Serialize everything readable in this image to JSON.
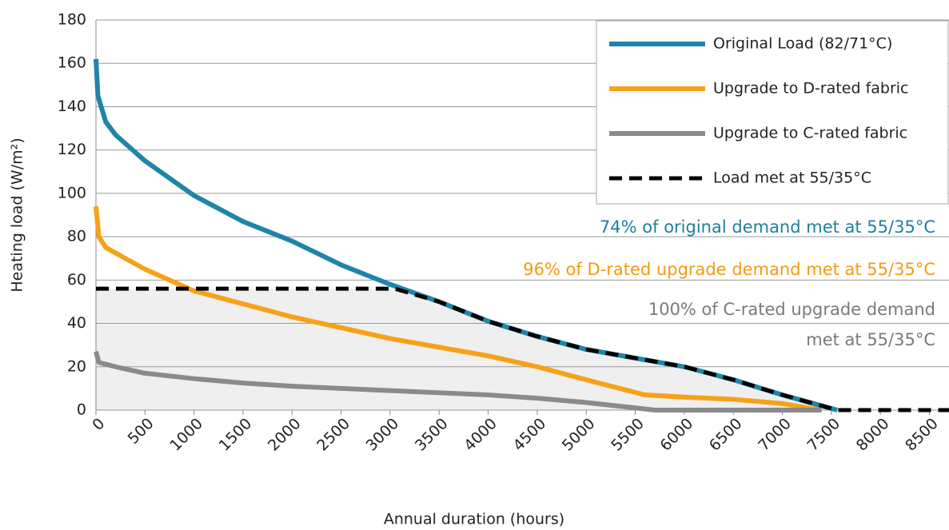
{
  "chart_data": {
    "type": "line",
    "x_label": "Annual duration (hours)",
    "y_label": "Heating load (W/m²)",
    "xlim": [
      0,
      8700
    ],
    "ylim": [
      0,
      180
    ],
    "xticks": [
      0,
      500,
      1000,
      1500,
      2000,
      2500,
      3000,
      3500,
      4000,
      4500,
      5000,
      5500,
      6000,
      6500,
      7000,
      7500,
      8000,
      8500
    ],
    "yticks": [
      0,
      20,
      40,
      60,
      80,
      100,
      120,
      140,
      160,
      180
    ],
    "grid": true,
    "legend": "upper right",
    "series": [
      {
        "name": "Original Load (82/71°C)",
        "color": "#1f85a8",
        "linestyle": "solid",
        "x": [
          0,
          20,
          100,
          200,
          500,
          1000,
          1500,
          2000,
          2500,
          3000,
          3500,
          4000,
          4500,
          5000,
          5500,
          6000,
          6500,
          7000,
          7560
        ],
        "values": [
          162,
          145,
          133,
          127,
          115,
          99,
          87,
          78,
          67,
          58,
          50,
          41,
          34,
          28,
          24,
          20,
          14,
          7,
          0
        ]
      },
      {
        "name": "Upgrade to D-rated fabric",
        "color": "#f7a11a",
        "linestyle": "solid",
        "x": [
          0,
          30,
          100,
          300,
          500,
          1000,
          1500,
          2000,
          2500,
          3000,
          3500,
          4000,
          4500,
          5000,
          5600,
          6000,
          6500,
          7000,
          7400
        ],
        "values": [
          94,
          80,
          75,
          70,
          65,
          55,
          49,
          43,
          38,
          33,
          29,
          25,
          20,
          14,
          7,
          6,
          5,
          3,
          0
        ]
      },
      {
        "name": "Upgrade to C-rated fabric",
        "color": "#8a8a8a",
        "linestyle": "solid",
        "x": [
          0,
          30,
          200,
          500,
          1000,
          1500,
          2000,
          2500,
          3000,
          3500,
          4000,
          4500,
          5000,
          5500,
          5700,
          7400
        ],
        "values": [
          27,
          22,
          20,
          17,
          14.5,
          12.5,
          11,
          10,
          9,
          8,
          7,
          5.5,
          3.5,
          1,
          0,
          0
        ]
      },
      {
        "name": "Load met at 55/35°C",
        "color": "#000000",
        "linestyle": "dashed",
        "x": [
          0,
          3050,
          3500,
          4000,
          4500,
          5000,
          5500,
          6000,
          6500,
          7000,
          7560,
          8700
        ],
        "values": [
          56,
          56,
          50,
          41,
          34,
          28,
          24,
          20,
          14,
          7,
          0,
          0
        ]
      }
    ],
    "annotations": [
      {
        "text": [
          "74% of original demand met at 55/35°C"
        ],
        "color": "#1f7f9e"
      },
      {
        "text": [
          "96% of D-rated upgrade demand met at 55/35°C"
        ],
        "color": "#f39a12"
      },
      {
        "text": [
          "100% of C-rated upgrade demand",
          "met at 55/35°C"
        ],
        "color": "#7a7a7a"
      }
    ]
  }
}
